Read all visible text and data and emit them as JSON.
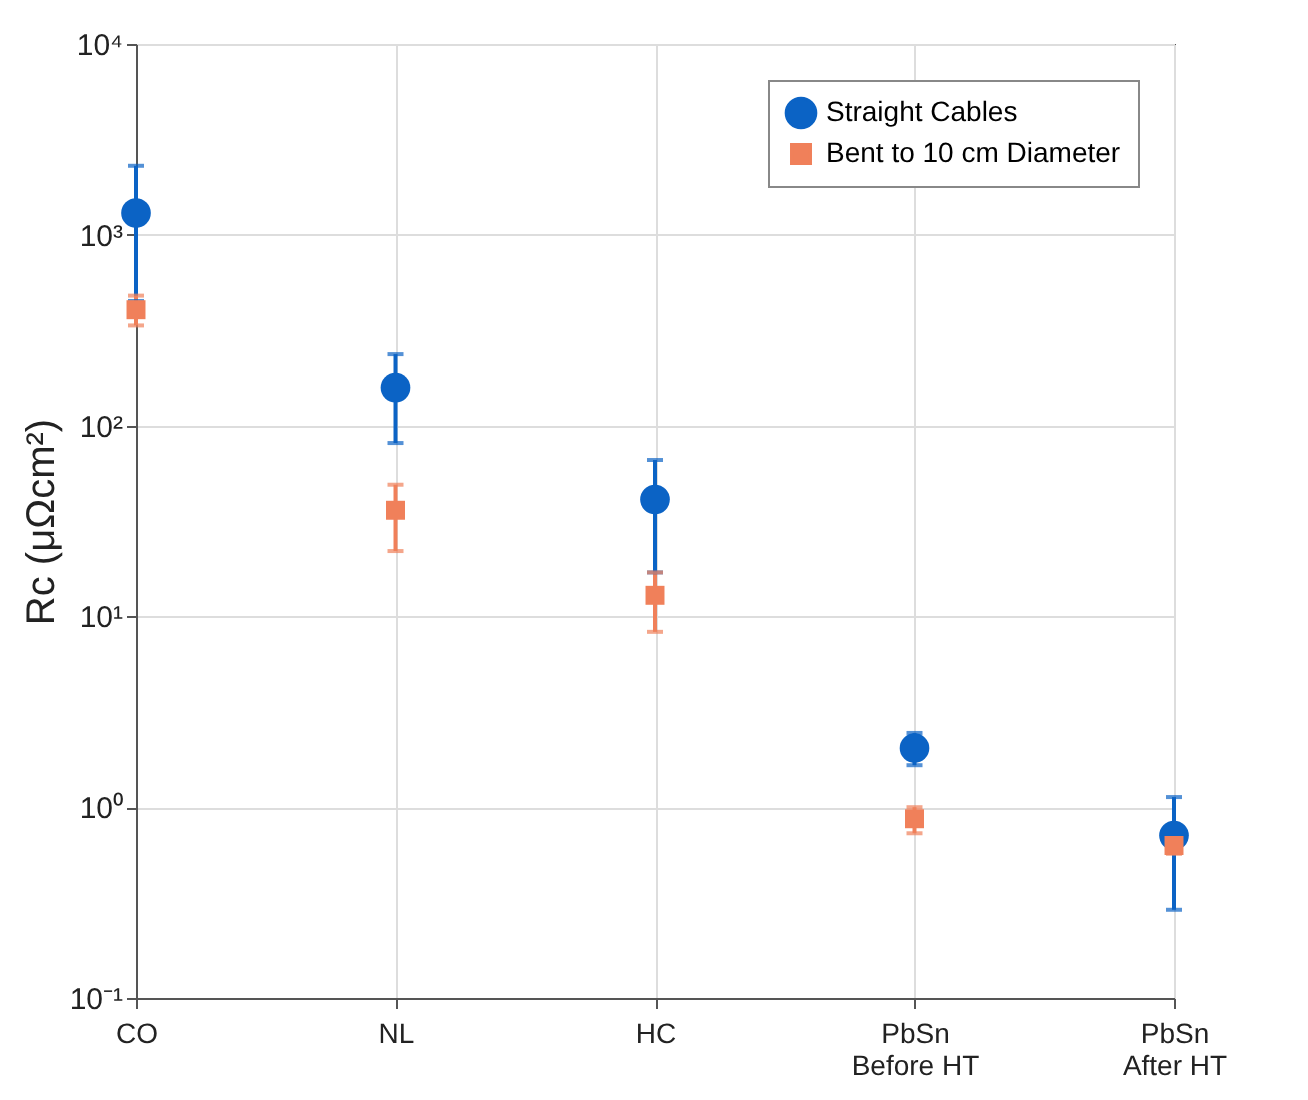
{
  "chart_data": {
    "type": "scatter",
    "categories": [
      "CO",
      "NL",
      "HC",
      "PbSn\nBefore HT",
      "PbSn\nAfter HT"
    ],
    "ylabel": "Rc (μΩcm²)",
    "log": "y",
    "ylim": [
      0.1,
      10000
    ],
    "yticks": [
      {
        "value": 0.1,
        "label": "10⁻¹"
      },
      {
        "value": 1,
        "label": "10⁰"
      },
      {
        "value": 10,
        "label": "10¹"
      },
      {
        "value": 100,
        "label": "10²"
      },
      {
        "value": 1000,
        "label": "10³"
      },
      {
        "value": 10000,
        "label": "10⁴"
      }
    ],
    "grid": true,
    "legend": "top right",
    "series": [
      {
        "name": "Straight Cables",
        "color": "#0b63c5",
        "marker": "circle",
        "values": [
          1300,
          158,
          41,
          2.04,
          0.71
        ],
        "errors": [
          [
            450,
            2300
          ],
          [
            81,
            237
          ],
          [
            17,
            66
          ],
          [
            1.66,
            2.45
          ],
          [
            0.29,
            1.13
          ]
        ]
      },
      {
        "name": "Bent to 10 cm Diameter",
        "color": "#f0805a",
        "marker": "square",
        "values": [
          405,
          36,
          12.9,
          0.87,
          0.63
        ],
        "errors": [
          [
            335,
            480
          ],
          [
            22,
            49
          ],
          [
            8.3,
            17
          ],
          [
            0.73,
            1.0
          ],
          [
            0.57,
            0.7
          ]
        ]
      }
    ]
  }
}
